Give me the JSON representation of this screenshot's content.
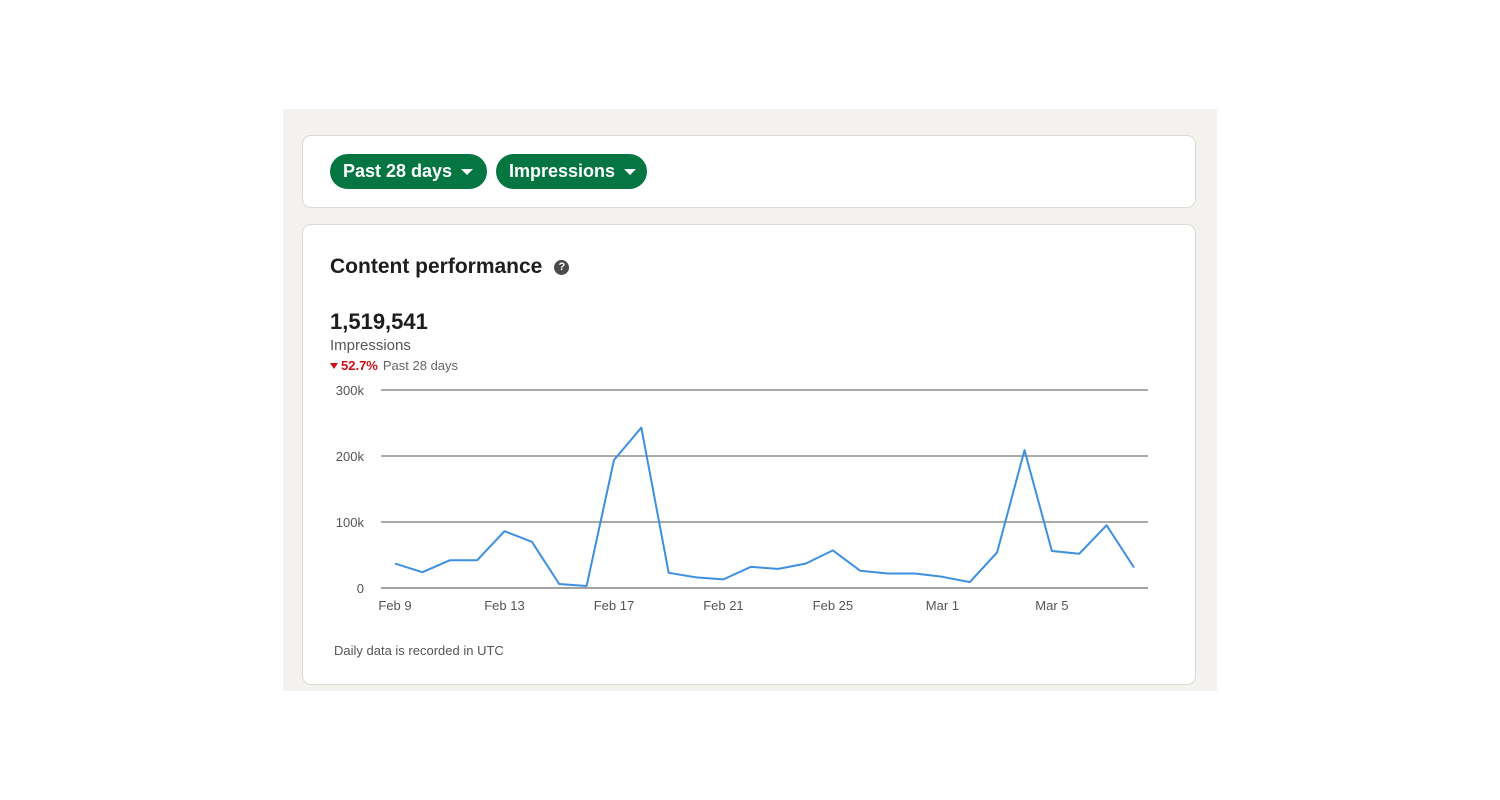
{
  "filters": {
    "range_label": "Past 28 days",
    "metric_label": "Impressions"
  },
  "performance": {
    "title": "Content performance",
    "help_icon": "question-circle-icon",
    "total_value": "1,519,541",
    "metric_label": "Impressions",
    "delta_value": "52.7%",
    "delta_direction": "down",
    "delta_period": "Past 28 days",
    "footnote": "Daily data is recorded in UTC"
  },
  "colors": {
    "brand_green": "#057642",
    "line_blue": "#3d8fe0",
    "delta_red": "#cc1016"
  },
  "chart_data": {
    "type": "line",
    "title": "",
    "xlabel": "",
    "ylabel": "",
    "x": [
      "Feb 9",
      "Feb 10",
      "Feb 11",
      "Feb 12",
      "Feb 13",
      "Feb 14",
      "Feb 15",
      "Feb 16",
      "Feb 17",
      "Feb 18",
      "Feb 19",
      "Feb 20",
      "Feb 21",
      "Feb 22",
      "Feb 23",
      "Feb 24",
      "Feb 25",
      "Feb 26",
      "Feb 27",
      "Feb 28",
      "Mar 1",
      "Mar 2",
      "Mar 3",
      "Mar 4",
      "Mar 5",
      "Mar 6",
      "Mar 7",
      "Mar 8"
    ],
    "x_tick_labels": [
      "Feb 9",
      "Feb 13",
      "Feb 17",
      "Feb 21",
      "Feb 25",
      "Mar 1",
      "Mar 5"
    ],
    "series": [
      {
        "values": [
          37000,
          24000,
          42000,
          42000,
          86000,
          70000,
          6000,
          3000,
          194000,
          243000,
          23000,
          16000,
          13000,
          32000,
          29000,
          37000,
          57000,
          26000,
          22000,
          22000,
          17000,
          9000,
          54000,
          209000,
          56000,
          52000,
          95000,
          31000
        ]
      }
    ],
    "y_ticks": [
      0,
      100000,
      200000,
      300000
    ],
    "y_tick_labels": [
      "0",
      "100k",
      "200k",
      "300k"
    ],
    "ylim": [
      0,
      300000
    ],
    "grid": true,
    "legend": "none"
  }
}
